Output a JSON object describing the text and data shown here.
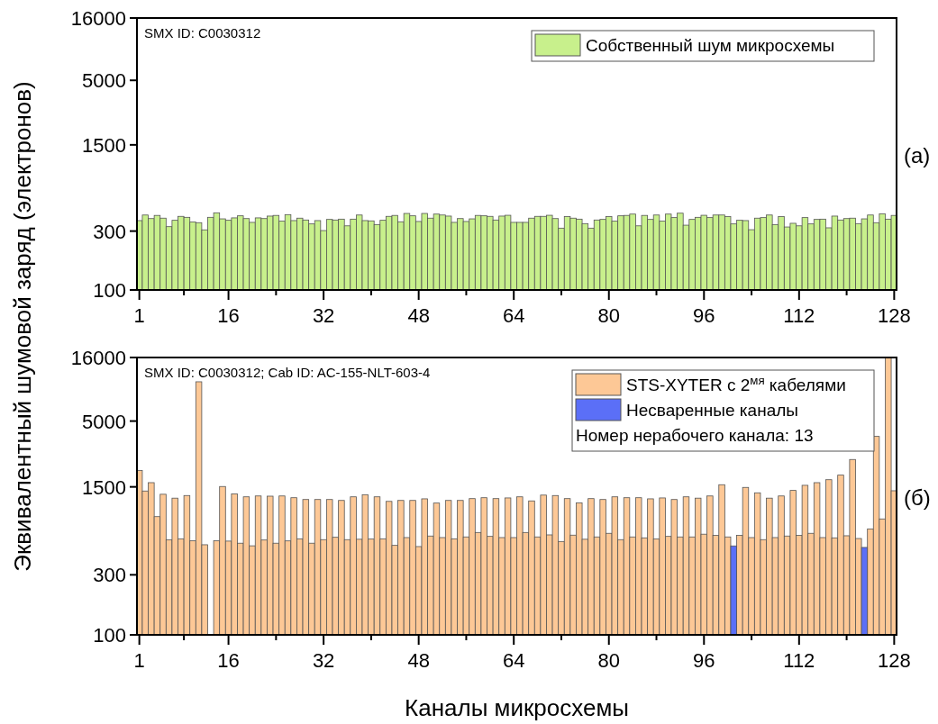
{
  "chart_data": [
    {
      "type": "bar",
      "ylabel": "Эквивалентный шумовой заряд (электронов)",
      "x": [
        1,
        2,
        3,
        4,
        5,
        6,
        7,
        8,
        9,
        10,
        11,
        12,
        13,
        14,
        15,
        16,
        17,
        18,
        19,
        20,
        21,
        22,
        23,
        24,
        25,
        26,
        27,
        28,
        29,
        30,
        31,
        32,
        33,
        34,
        35,
        36,
        37,
        38,
        39,
        40,
        41,
        42,
        43,
        44,
        45,
        46,
        47,
        48,
        49,
        50,
        51,
        52,
        53,
        54,
        55,
        56,
        57,
        58,
        59,
        60,
        61,
        62,
        63,
        64,
        65,
        66,
        67,
        68,
        69,
        70,
        71,
        72,
        73,
        74,
        75,
        76,
        77,
        78,
        79,
        80,
        81,
        82,
        83,
        84,
        85,
        86,
        87,
        88,
        89,
        90,
        91,
        92,
        93,
        94,
        95,
        96,
        97,
        98,
        99,
        100,
        101,
        102,
        103,
        104,
        105,
        106,
        107,
        108,
        109,
        110,
        111,
        112,
        113,
        114,
        115,
        116,
        117,
        118,
        119,
        120,
        121,
        122,
        123,
        124,
        125,
        126,
        127,
        128
      ],
      "series": [
        {
          "name": "Собственный шум микросхемы",
          "color": "#c8f08c",
          "values": [
            365,
            405,
            379,
            402,
            382,
            326,
            367,
            395,
            388,
            355,
            351,
            307,
            388,
            422,
            377,
            367,
            384,
            399,
            379,
            353,
            384,
            379,
            397,
            402,
            361,
            408,
            365,
            382,
            369,
            343,
            365,
            303,
            373,
            369,
            375,
            331,
            375,
            405,
            365,
            363,
            339,
            367,
            395,
            402,
            357,
            417,
            399,
            359,
            417,
            382,
            412,
            405,
            397,
            353,
            379,
            359,
            377,
            402,
            399,
            395,
            369,
            397,
            403,
            353,
            353,
            353,
            382,
            395,
            395,
            403,
            379,
            317,
            393,
            382,
            375,
            345,
            317,
            369,
            373,
            393,
            361,
            399,
            402,
            412,
            331,
            402,
            373,
            405,
            361,
            412,
            386,
            419,
            335,
            373,
            388,
            403,
            386,
            405,
            405,
            393,
            343,
            367,
            365,
            308,
            382,
            386,
            405,
            339,
            393,
            324,
            347,
            331,
            386,
            343,
            373,
            375,
            319,
            397,
            369,
            379,
            382,
            345,
            377,
            405,
            351,
            414,
            375,
            402
          ]
        }
      ],
      "xlim": [
        0.6,
        128.4
      ],
      "xticks": [
        1,
        {
          "value": 8.5,
          "label": null
        },
        16,
        {
          "value": 24,
          "label": null
        },
        32,
        {
          "value": 40,
          "label": null
        },
        48,
        {
          "value": 56,
          "label": null
        },
        64,
        {
          "value": 72,
          "label": null
        },
        80,
        {
          "value": 88,
          "label": null
        },
        96,
        {
          "value": 104,
          "label": null
        },
        112,
        {
          "value": 120,
          "label": null
        },
        128
      ],
      "ylim": [
        100,
        16000
      ],
      "yticks": [
        100,
        300,
        1500,
        5000,
        16000
      ],
      "log": true,
      "legend": "top right",
      "annotations": [
        "SMX ID: C0030312",
        "(a)"
      ]
    },
    {
      "type": "bar",
      "xlabel": "Каналы микросхемы",
      "x": [
        1,
        2,
        3,
        4,
        5,
        6,
        7,
        8,
        9,
        10,
        11,
        12,
        13,
        14,
        15,
        16,
        17,
        18,
        19,
        20,
        21,
        22,
        23,
        24,
        25,
        26,
        27,
        28,
        29,
        30,
        31,
        32,
        33,
        34,
        35,
        36,
        37,
        38,
        39,
        40,
        41,
        42,
        43,
        44,
        45,
        46,
        47,
        48,
        49,
        50,
        51,
        52,
        53,
        54,
        55,
        56,
        57,
        58,
        59,
        60,
        61,
        62,
        63,
        64,
        65,
        66,
        67,
        68,
        69,
        70,
        71,
        72,
        73,
        74,
        75,
        76,
        77,
        78,
        79,
        80,
        81,
        82,
        83,
        84,
        85,
        86,
        87,
        88,
        89,
        90,
        91,
        92,
        93,
        94,
        95,
        96,
        97,
        98,
        99,
        100,
        101,
        102,
        103,
        104,
        105,
        106,
        107,
        108,
        109,
        110,
        111,
        112,
        113,
        114,
        115,
        116,
        117,
        118,
        119,
        120,
        121,
        122,
        123,
        124,
        125,
        126,
        127,
        128
      ],
      "series": [
        {
          "name": "STS-XYTER с 2$^{мя}$ кабелями",
          "color": "#fdc896",
          "values": [
            2020,
            1390,
            1620,
            870,
            1310,
            570,
            1220,
            580,
            1280,
            560,
            10260,
            520,
            null,
            560,
            1510,
            556,
            1320,
            535,
            1250,
            510,
            1270,
            567,
            1265,
            535,
            1270,
            558,
            1230,
            580,
            1190,
            535,
            1190,
            571,
            1190,
            596,
            1170,
            571,
            1250,
            575,
            1300,
            577,
            1250,
            580,
            1150,
            514,
            1170,
            593,
            1170,
            503,
            1205,
            610,
            1115,
            593,
            1170,
            580,
            1170,
            600,
            1210,
            651,
            1230,
            606,
            1210,
            593,
            1225,
            593,
            1250,
            651,
            1160,
            600,
            1290,
            623,
            1280,
            552,
            1210,
            620,
            1120,
            575,
            1210,
            600,
            1190,
            641,
            1250,
            571,
            1230,
            600,
            1230,
            590,
            1205,
            578,
            1225,
            606,
            1190,
            600,
            1250,
            600,
            1220,
            631,
            1270,
            617,
            1560,
            600,
            null,
            617,
            1485,
            593,
            1345,
            571,
            1220,
            593,
            1270,
            610,
            1405,
            617,
            1543,
            641,
            1620,
            593,
            1710,
            590,
            1860,
            613,
            2475,
            583,
            null,
            695,
            3776,
            834,
            16000,
            1397
          ]
        },
        {
          "name": "Несваренные каналы",
          "color": "#5b6ff7",
          "values": [
            null,
            null,
            null,
            null,
            null,
            null,
            null,
            null,
            null,
            null,
            null,
            null,
            null,
            null,
            null,
            null,
            null,
            null,
            null,
            null,
            null,
            null,
            null,
            null,
            null,
            null,
            null,
            null,
            null,
            null,
            null,
            null,
            null,
            null,
            null,
            null,
            null,
            null,
            null,
            null,
            null,
            null,
            null,
            null,
            null,
            null,
            null,
            null,
            null,
            null,
            null,
            null,
            null,
            null,
            null,
            null,
            null,
            null,
            null,
            null,
            null,
            null,
            null,
            null,
            null,
            null,
            null,
            null,
            null,
            null,
            null,
            null,
            null,
            null,
            null,
            null,
            null,
            null,
            null,
            null,
            null,
            null,
            null,
            null,
            null,
            null,
            null,
            null,
            null,
            null,
            null,
            null,
            null,
            null,
            null,
            null,
            null,
            null,
            null,
            null,
            509,
            null,
            null,
            null,
            null,
            null,
            null,
            null,
            null,
            null,
            null,
            null,
            null,
            null,
            null,
            null,
            null,
            null,
            null,
            null,
            null,
            null,
            495,
            null,
            null,
            null,
            null,
            null
          ]
        }
      ],
      "xlim": [
        0.6,
        128.4
      ],
      "xticks": [
        1,
        {
          "value": 8.5,
          "label": null
        },
        16,
        {
          "value": 24,
          "label": null
        },
        32,
        {
          "value": 40,
          "label": null
        },
        48,
        {
          "value": 56,
          "label": null
        },
        64,
        {
          "value": 72,
          "label": null
        },
        80,
        {
          "value": 88,
          "label": null
        },
        96,
        {
          "value": 104,
          "label": null
        },
        112,
        {
          "value": 120,
          "label": null
        },
        128
      ],
      "ylim": [
        100,
        16000
      ],
      "yticks": [
        100,
        300,
        1500,
        5000,
        16000
      ],
      "log": true,
      "legend": "top right",
      "annotations": [
        "SMX ID: C0030312; Cab ID: AC-155-NLT-603-4",
        "Номер нерабочего канала: 13",
        "(б)"
      ]
    }
  ]
}
